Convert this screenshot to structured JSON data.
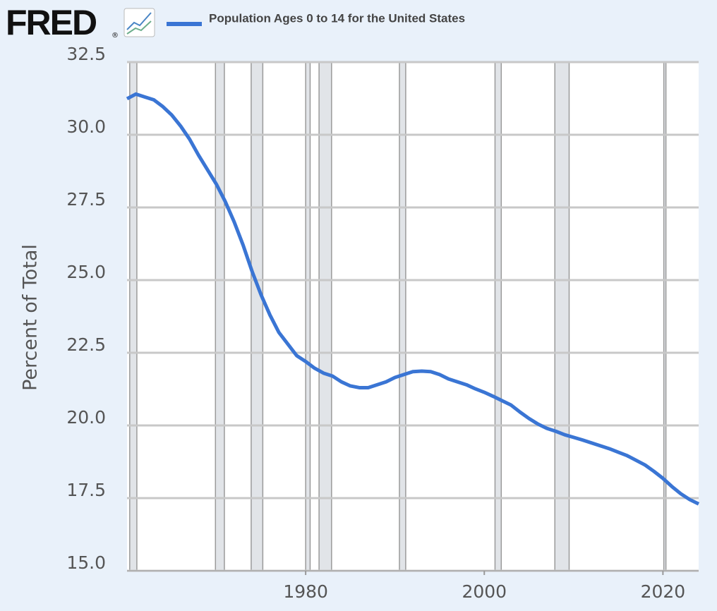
{
  "chart_data": {
    "type": "line",
    "logo": "FRED",
    "logo_suffix": "®",
    "y_label": "Percent of Total",
    "x": [
      1960,
      1961,
      1962,
      1963,
      1964,
      1965,
      1966,
      1967,
      1968,
      1969,
      1970,
      1971,
      1972,
      1973,
      1974,
      1975,
      1976,
      1977,
      1978,
      1979,
      1980,
      1981,
      1982,
      1983,
      1984,
      1985,
      1986,
      1987,
      1988,
      1989,
      1990,
      1991,
      1992,
      1993,
      1994,
      1995,
      1996,
      1997,
      1998,
      1999,
      2000,
      2001,
      2002,
      2003,
      2004,
      2005,
      2006,
      2007,
      2008,
      2009,
      2010,
      2011,
      2012,
      2013,
      2014,
      2015,
      2016,
      2017,
      2018,
      2019,
      2020,
      2021,
      2022,
      2023,
      2024
    ],
    "series": [
      {
        "name": "Population Ages 0 to 14 for the United States",
        "color": "#3a75d4",
        "values": [
          31.24,
          31.4,
          31.3,
          31.2,
          30.97,
          30.68,
          30.3,
          29.85,
          29.3,
          28.8,
          28.3,
          27.7,
          27.0,
          26.2,
          25.3,
          24.5,
          23.8,
          23.2,
          22.8,
          22.4,
          22.2,
          21.97,
          21.8,
          21.7,
          21.5,
          21.36,
          21.3,
          21.3,
          21.4,
          21.5,
          21.65,
          21.75,
          21.85,
          21.87,
          21.85,
          21.75,
          21.6,
          21.5,
          21.4,
          21.26,
          21.14,
          21.0,
          20.85,
          20.7,
          20.46,
          20.24,
          20.05,
          19.9,
          19.8,
          19.68,
          19.59,
          19.5,
          19.4,
          19.3,
          19.2,
          19.08,
          18.96,
          18.8,
          18.64,
          18.42,
          18.18,
          17.9,
          17.65,
          17.45,
          17.3
        ]
      }
    ],
    "recessions": [
      {
        "start": 1960.3,
        "end": 1961.1
      },
      {
        "start": 1969.9,
        "end": 1970.9
      },
      {
        "start": 1973.9,
        "end": 1975.2
      },
      {
        "start": 1980.0,
        "end": 1980.5
      },
      {
        "start": 1981.5,
        "end": 1982.9
      },
      {
        "start": 1990.5,
        "end": 1991.2
      },
      {
        "start": 2001.2,
        "end": 2001.9
      },
      {
        "start": 2007.9,
        "end": 2009.5
      },
      {
        "start": 2020.1,
        "end": 2020.3
      }
    ],
    "xlim": [
      1960,
      2024
    ],
    "xticks": [
      1980,
      2000,
      2020
    ],
    "ylim": [
      15,
      32.5
    ],
    "yticks": [
      {
        "value": 15,
        "label": "15.0"
      },
      17.5,
      {
        "value": 20,
        "label": "20.0"
      },
      22.5,
      {
        "value": 25,
        "label": "25.0"
      },
      27.5,
      {
        "value": 30,
        "label": "30.0"
      },
      32.5
    ],
    "grid": true
  }
}
